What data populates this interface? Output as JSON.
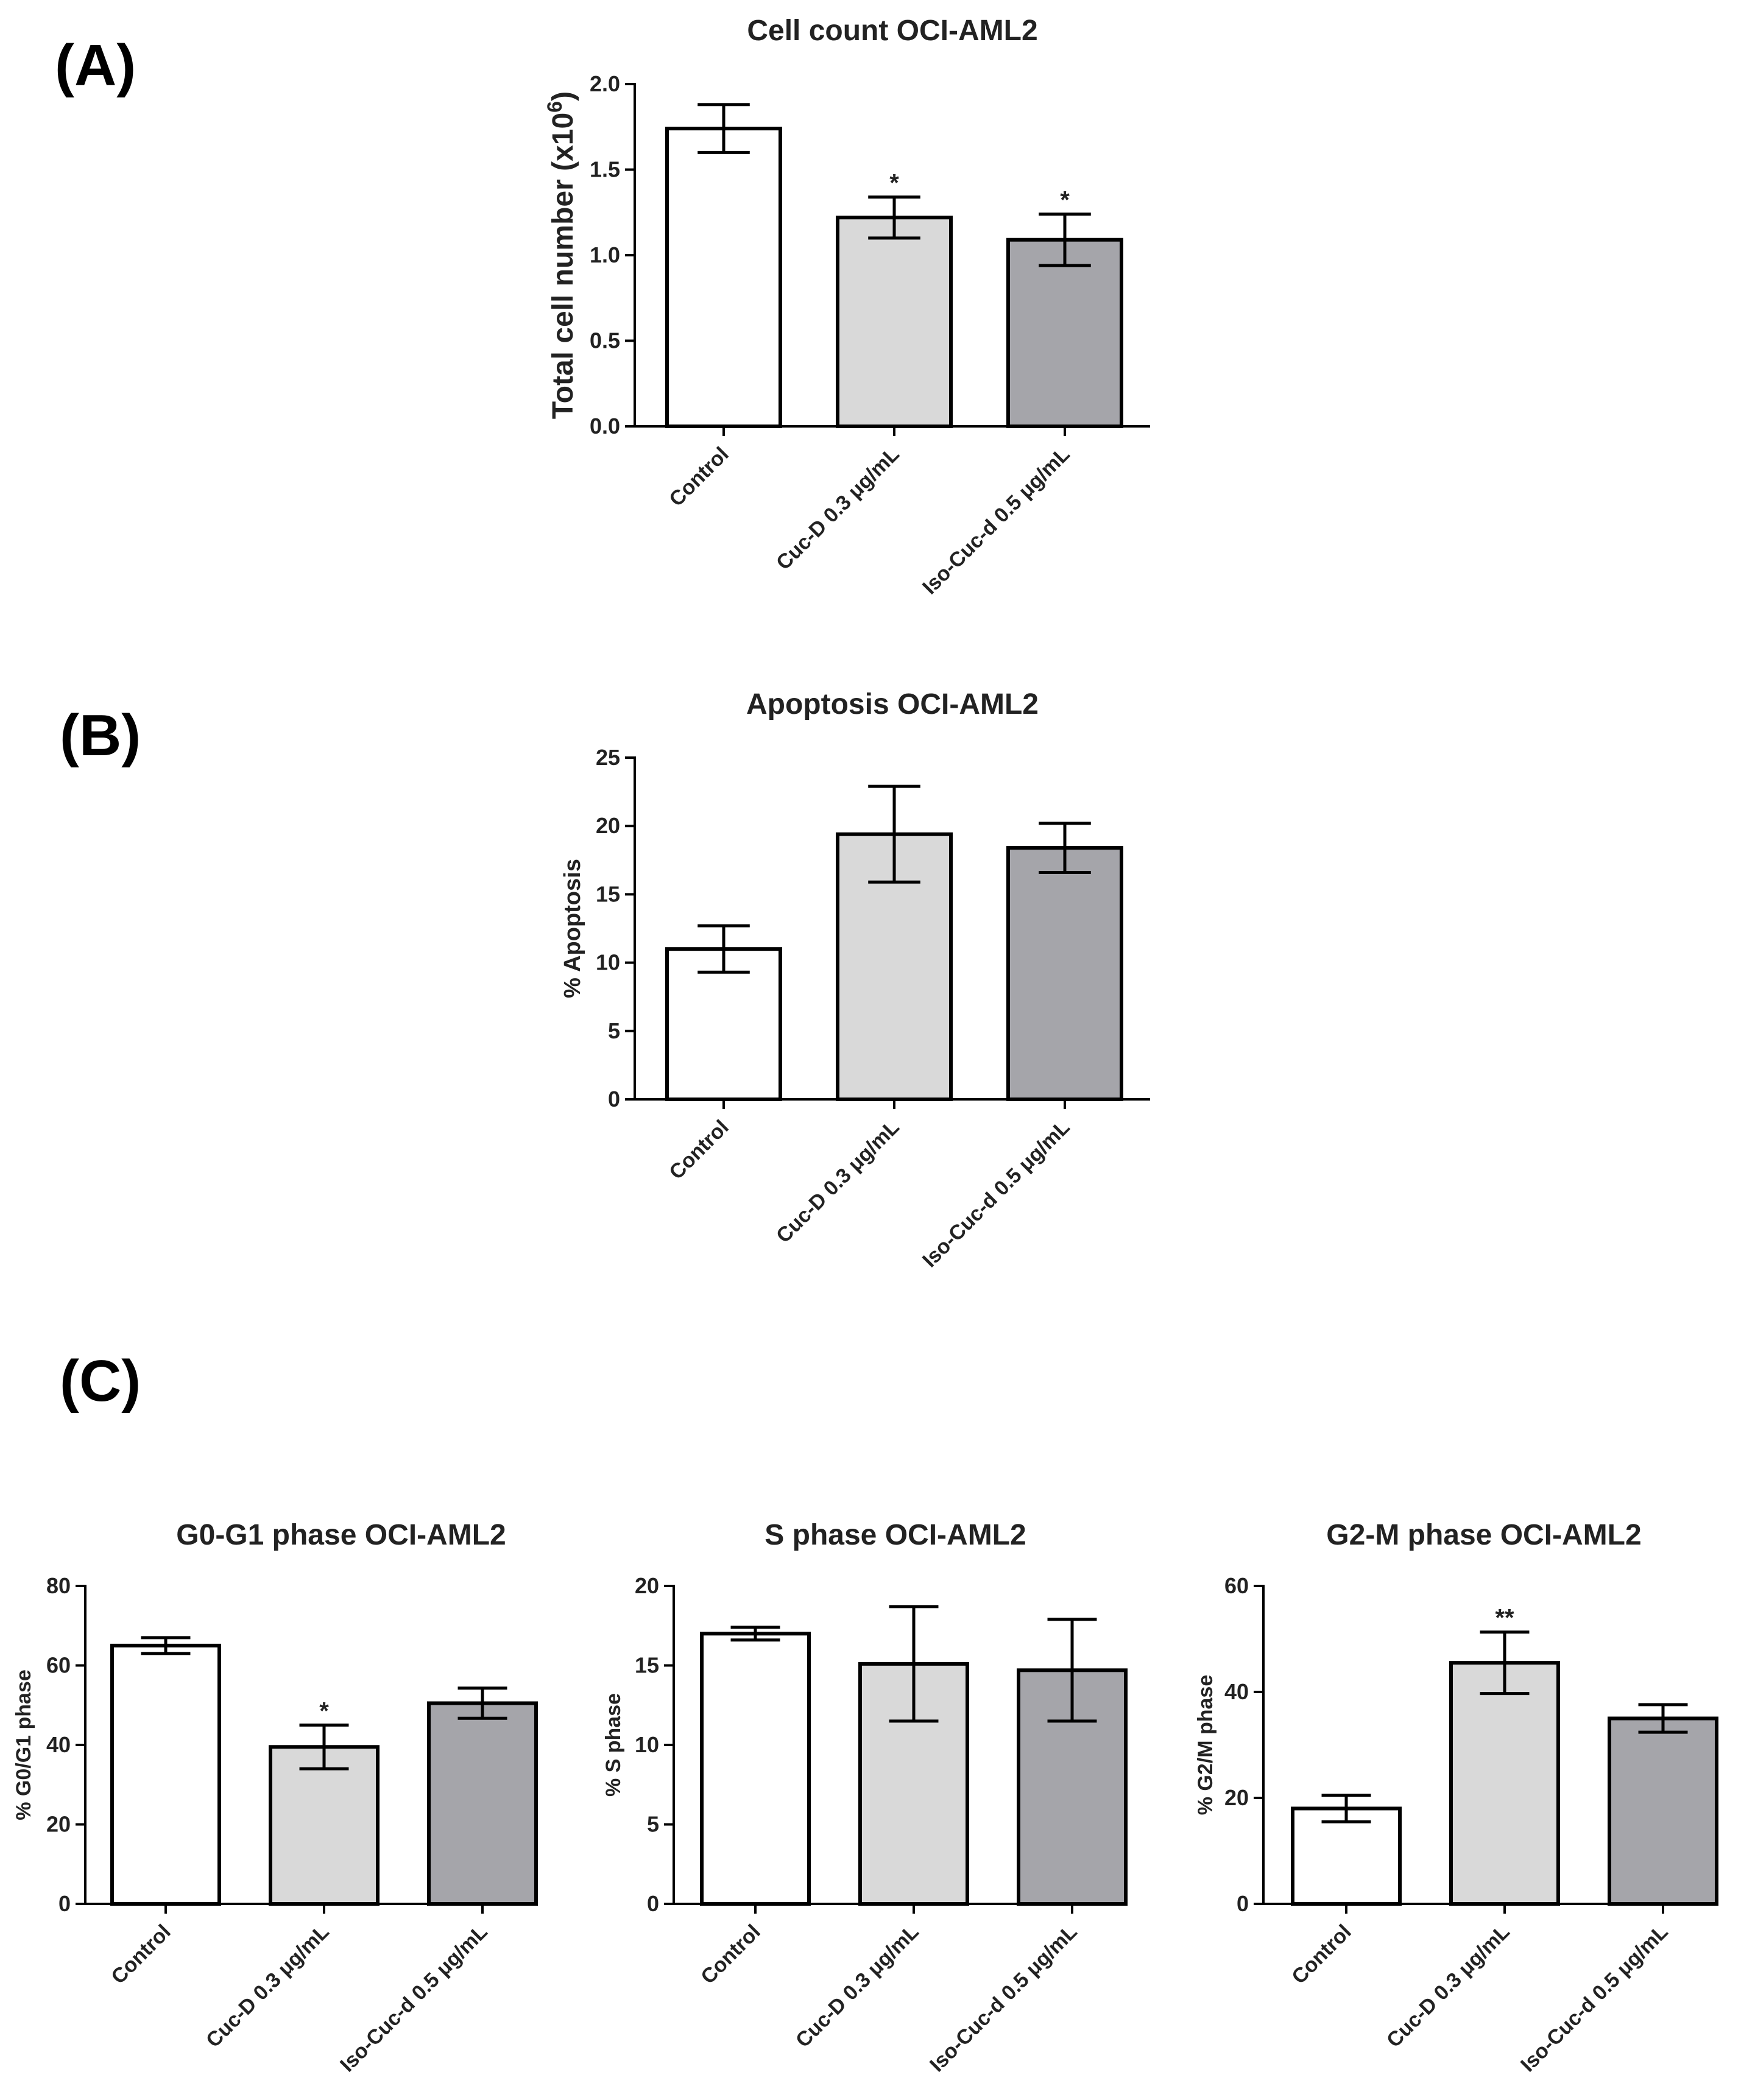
{
  "panels": {
    "a": "(A)",
    "b": "(B)",
    "c": "(C)"
  },
  "colors": {
    "control": "#ffffff",
    "cucd": "#d9d9d9",
    "isocucd": "#a5a5aa",
    "stroke": "#000000"
  },
  "chart_data": [
    {
      "type": "bar",
      "title": "Cell count OCI-AML2",
      "ylabel_main": "Total cell number (x10",
      "ylabel_sup": "6",
      "ylabel_end": ")",
      "categories": [
        "Control",
        "Cuc-D 0.3 μg/mL",
        "Iso-Cuc-d 0.5 μg/mL"
      ],
      "values": [
        1.74,
        1.22,
        1.09
      ],
      "errors": [
        0.14,
        0.12,
        0.15
      ],
      "significance": [
        "",
        "*",
        "*"
      ],
      "ylim": [
        0,
        2
      ],
      "yticks": [
        "0.0",
        "0.5",
        "1.0",
        "1.5",
        "2.0"
      ]
    },
    {
      "type": "bar",
      "title": "Apoptosis OCI-AML2",
      "ylabel": "% Apoptosis",
      "categories": [
        "Control",
        "Cuc-D 0.3 μg/mL",
        "Iso-Cuc-d 0.5 μg/mL"
      ],
      "values": [
        11.0,
        19.4,
        18.4
      ],
      "errors": [
        1.7,
        3.5,
        1.8
      ],
      "significance": [
        "",
        "",
        ""
      ],
      "ylim": [
        0,
        25
      ],
      "yticks": [
        "0",
        "5",
        "10",
        "15",
        "20",
        "25"
      ]
    },
    {
      "type": "bar",
      "title": "G0-G1 phase OCI-AML2",
      "ylabel": "% G0/G1 phase",
      "categories": [
        "Control",
        "Cuc-D 0.3 μg/mL",
        "Iso-Cuc-d 0.5 μg/mL"
      ],
      "values": [
        65,
        39.5,
        50.5
      ],
      "errors": [
        2.0,
        5.5,
        3.8
      ],
      "significance": [
        "",
        "*",
        ""
      ],
      "ylim": [
        0,
        80
      ],
      "yticks": [
        "0",
        "20",
        "40",
        "60",
        "80"
      ]
    },
    {
      "type": "bar",
      "title": "S phase OCI-AML2",
      "ylabel": "% S phase",
      "categories": [
        "Control",
        "Cuc-D 0.3 μg/mL",
        "Iso-Cuc-d 0.5 μg/mL"
      ],
      "values": [
        17.0,
        15.1,
        14.7
      ],
      "errors": [
        0.4,
        3.6,
        3.2
      ],
      "significance": [
        "",
        "",
        ""
      ],
      "ylim": [
        0,
        20
      ],
      "yticks": [
        "0",
        "5",
        "10",
        "15",
        "20"
      ]
    },
    {
      "type": "bar",
      "title": "G2-M phase OCI-AML2",
      "ylabel": "% G2/M phase",
      "categories": [
        "Control",
        "Cuc-D 0.3 μg/mL",
        "Iso-Cuc-d 0.5 μg/mL"
      ],
      "values": [
        18.0,
        45.5,
        35.0
      ],
      "errors": [
        2.5,
        5.8,
        2.6
      ],
      "significance": [
        "",
        "**",
        ""
      ],
      "ylim": [
        0,
        60
      ],
      "yticks": [
        "0",
        "20",
        "40",
        "60"
      ]
    }
  ]
}
